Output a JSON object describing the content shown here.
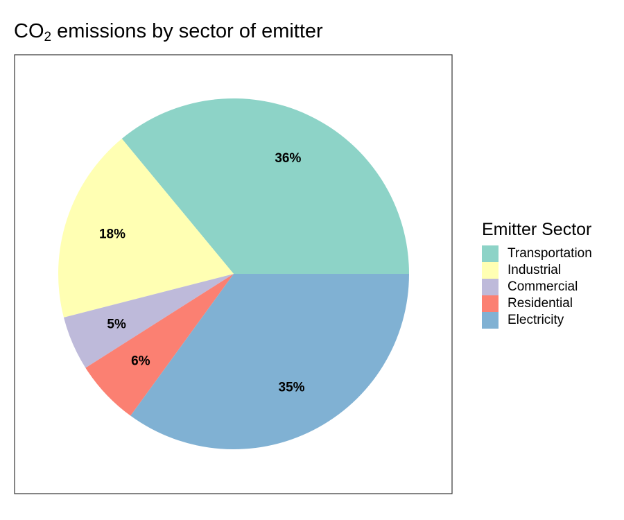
{
  "chart_data": {
    "type": "pie",
    "title_main": "CO",
    "title_sub": "2",
    "title_rest": " emissions by sector of emitter",
    "legend_title": "Emitter Sector",
    "legend_position": "right",
    "categories": [
      "Transportation",
      "Industrial",
      "Commercial",
      "Residential",
      "Electricity"
    ],
    "values": [
      36,
      18,
      5,
      6,
      35
    ],
    "labels": [
      "36%",
      "18%",
      "5%",
      "6%",
      "35%"
    ],
    "colors": [
      "#8DD3C7",
      "#FFFFB3",
      "#BEBADA",
      "#FB8072",
      "#80B1D3"
    ]
  }
}
